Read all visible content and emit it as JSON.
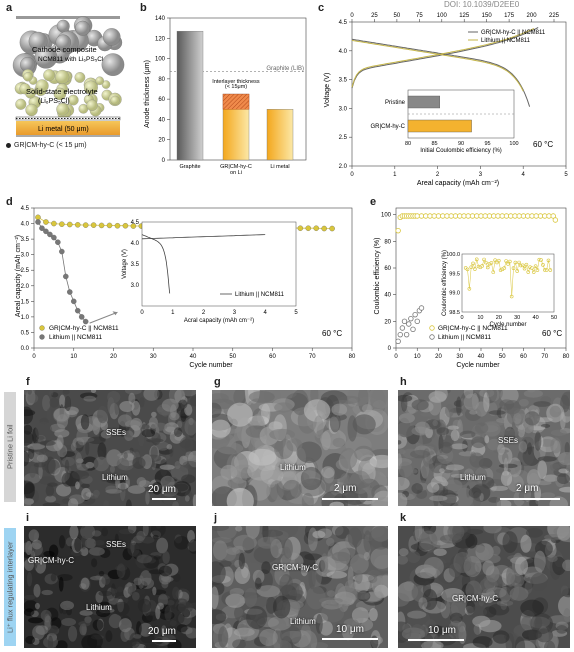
{
  "doi": "DOI: 10.1039/D2EE0",
  "panels": {
    "a": {
      "letter": "a",
      "cathode": "Cathode composite",
      "cathode_sub": "NCM811 with Li₆PS₅Cl",
      "sse": "Solid-state electrolyte",
      "sse_sub": "(Li₆PS₅Cl)",
      "li_metal": "Li metal (50 μm)",
      "interlayer": "GR|CM-hy-C (< 15 μm)"
    },
    "b": {
      "letter": "b",
      "ylabel": "Anode thickness (μm)",
      "ref": "Graphite (LIB)",
      "annot": "Interlayer thickness",
      "annot2": "(< 15μm)"
    },
    "c": {
      "letter": "c",
      "xlabel": "Areal capacity (mAh cm⁻²)",
      "ylabel": "Voltage (V)",
      "temp": "60 °C",
      "inset_xlabel": "Initial Coulombic efficiency (%)",
      "inset_cats": [
        "Pristine",
        "GR|CM-hy-C"
      ]
    },
    "d": {
      "letter": "d",
      "xlabel": "Cycle number",
      "ylabel": "Areal capacity (mAh cm⁻²)",
      "temp": "60 °C",
      "inset_xlabel": "Acral capacity (mAh cm⁻²)",
      "inset_ylabel": "Voltage (V)",
      "inset_legend": "Lithium || NCM811"
    },
    "e": {
      "letter": "e",
      "xlabel": "Cycle number",
      "ylabel": "Coulombic efficiency (%)",
      "temp": "60 °C",
      "inset_xlabel": "Cycle number",
      "inset_ylabel": "Coulombic efficiency (%)"
    },
    "f": {
      "letter": "f",
      "l1": "SSEs",
      "l2": "Lithium",
      "scale": "20 μm"
    },
    "g": {
      "letter": "g",
      "l1": "Lithium",
      "scale": "2 μm"
    },
    "h": {
      "letter": "h",
      "l1": "SSEs",
      "l2": "Lithium",
      "scale": "2 μm"
    },
    "i": {
      "letter": "i",
      "l1": "SSEs",
      "l2": "GR|CM-hy-C",
      "l3": "Lithium",
      "scale": "20 μm"
    },
    "j": {
      "letter": "j",
      "l1": "GR|CM-hy-C",
      "l2": "Lithium",
      "scale": "10 μm"
    },
    "k": {
      "letter": "k",
      "l1": "GR|CM-hy-C",
      "scale": "10 μm"
    },
    "side1": "Pristine Li foil",
    "side2": "Li⁺ flux regulating interlayer"
  },
  "chart_data": [
    {
      "type": "bar",
      "id": "b",
      "categories": [
        "Graphite",
        "GR|CM-hy-C on Li",
        "Li metal"
      ],
      "values": [
        127,
        65,
        50
      ],
      "ylim": [
        0,
        140
      ],
      "reference_line": 87,
      "colors": [
        "#8a8a8a",
        "#f4b22f",
        "#f4b22f"
      ]
    },
    {
      "type": "line",
      "id": "c",
      "xlim": [
        0,
        5
      ],
      "ylim": [
        2.0,
        4.5
      ],
      "top_axis": [
        0,
        25,
        50,
        75,
        100,
        125,
        150,
        175,
        200,
        225
      ],
      "series": [
        {
          "name": "GR|CM-hy-C || NCM811",
          "color": "#666"
        },
        {
          "name": "Lithium || NCM811",
          "color": "#c5b64a"
        }
      ],
      "inset": {
        "type": "bar",
        "categories": [
          "Pristine",
          "GR|CM-hy-C"
        ],
        "values": [
          86,
          92
        ],
        "xlim": [
          80,
          100
        ],
        "ref": 88.5
      }
    },
    {
      "type": "scatter",
      "id": "d",
      "xlim": [
        0,
        80
      ],
      "ylim": [
        0.0,
        4.5
      ],
      "series": [
        {
          "name": "GR|CM-hy-C || NCM811",
          "color": "#d9c63c",
          "x": [
            1,
            3,
            5,
            7,
            9,
            11,
            13,
            15,
            17,
            19,
            21,
            23,
            25,
            27,
            29,
            31,
            33,
            35,
            37,
            39,
            41,
            43,
            45,
            47,
            49,
            51,
            53,
            55,
            57,
            59,
            61,
            63,
            65,
            67,
            69,
            71,
            73,
            75
          ],
          "y": [
            4.2,
            4.05,
            4.0,
            3.98,
            3.97,
            3.96,
            3.95,
            3.95,
            3.94,
            3.94,
            3.93,
            3.93,
            3.92,
            3.92,
            3.92,
            3.91,
            3.91,
            3.9,
            3.9,
            3.9,
            3.9,
            3.89,
            3.89,
            3.89,
            3.88,
            3.88,
            3.88,
            3.87,
            3.87,
            3.87,
            3.86,
            3.86,
            3.86,
            3.85,
            3.85,
            3.85,
            3.84,
            3.84
          ]
        },
        {
          "name": "Lithium || NCM811",
          "color": "#777",
          "x": [
            1,
            2,
            3,
            4,
            5,
            6,
            7,
            8,
            9,
            10,
            11,
            12,
            13
          ],
          "y": [
            4.05,
            3.85,
            3.75,
            3.65,
            3.55,
            3.4,
            3.1,
            2.3,
            1.8,
            1.5,
            1.2,
            1.0,
            0.85
          ]
        }
      ],
      "inset": {
        "xlim": [
          0,
          5
        ],
        "ylim": [
          2.5,
          4.5
        ]
      }
    },
    {
      "type": "scatter",
      "id": "e",
      "xlim": [
        0,
        80
      ],
      "ylim": [
        0,
        105
      ],
      "series": [
        {
          "name": "GR|CM-hy-C || NCM811",
          "color": "#d9c63c",
          "x": [
            1,
            2,
            3,
            4,
            5,
            6,
            7,
            8,
            9,
            10,
            12,
            14,
            16,
            18,
            20,
            22,
            24,
            26,
            28,
            30,
            32,
            34,
            36,
            38,
            40,
            42,
            44,
            46,
            48,
            50,
            52,
            54,
            56,
            58,
            60,
            62,
            64,
            66,
            68,
            70,
            72,
            74,
            75
          ],
          "y": [
            88,
            98,
            99,
            99,
            99,
            99,
            99,
            99,
            99,
            99,
            99,
            99,
            99,
            99,
            99,
            99,
            99,
            99,
            99,
            99,
            99,
            99,
            99,
            99,
            99,
            99,
            99,
            99,
            99,
            99,
            99,
            99,
            99,
            99,
            99,
            99,
            99,
            99,
            99,
            99,
            99,
            99,
            96
          ]
        },
        {
          "name": "Lithium || NCM811",
          "color": "#777",
          "x": [
            1,
            2,
            3,
            4,
            5,
            6,
            7,
            8,
            9,
            10,
            11,
            12
          ],
          "y": [
            5,
            10,
            15,
            20,
            10,
            18,
            22,
            14,
            25,
            20,
            28,
            30
          ]
        }
      ],
      "inset": {
        "xlim": [
          0,
          50
        ],
        "ylim": [
          98.5,
          100.0
        ]
      }
    }
  ]
}
